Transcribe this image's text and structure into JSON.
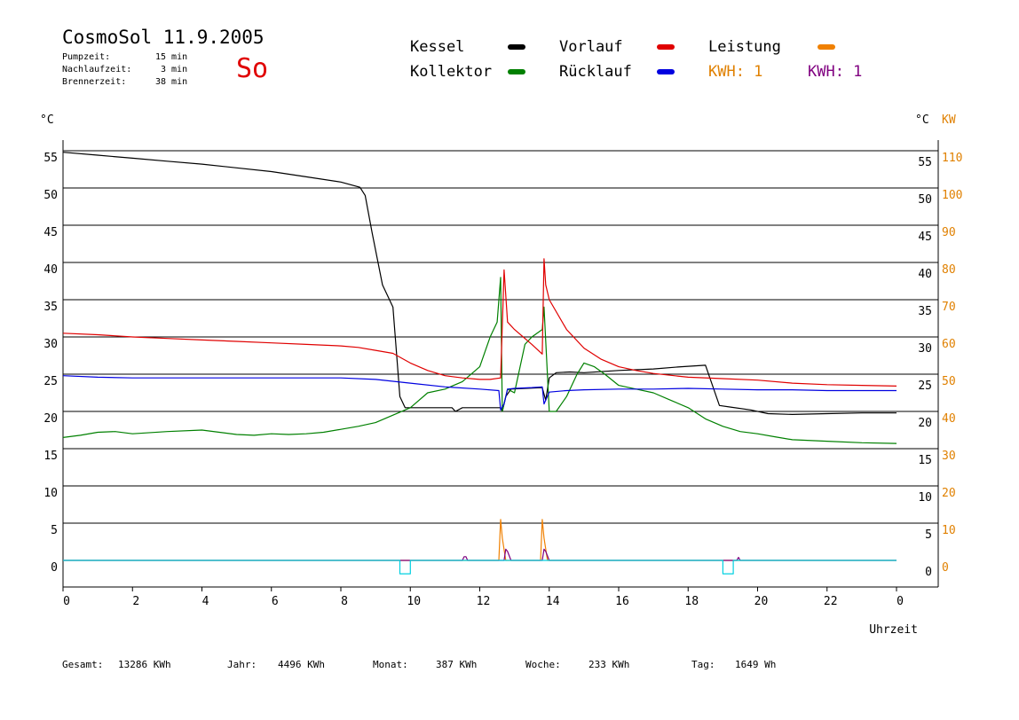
{
  "header": {
    "title": "CosmoSol 11.9.2005",
    "pump_label": "Pumpzeit:",
    "pump_value": "15 min",
    "nach_label": "Nachlaufzeit:",
    "nach_value": "3 min",
    "brenner_label": "Brennerzeit:",
    "brenner_value": "38 min",
    "day": "So"
  },
  "legend": {
    "kessel": "Kessel",
    "kollektor": "Kollektor",
    "vorlauf": "Vorlauf",
    "ruecklauf": "Rücklauf",
    "leistung": "Leistung",
    "kwh_orange": "KWH: 1",
    "kwh_purple": "KWH: 1",
    "colors": {
      "kessel": "#000000",
      "kollektor": "#008000",
      "vorlauf": "#e00000",
      "ruecklauf": "#0000e0",
      "leistung": "#f08000",
      "kwh_orange": "#e08000",
      "kwh_purple": "#800080"
    }
  },
  "units": {
    "left": "°C",
    "right_c": "°C",
    "right_kw": "KW"
  },
  "footer": {
    "gesamt_label": "Gesamt:",
    "gesamt_value": "13286 KWh",
    "jahr_label": "Jahr:",
    "jahr_value": "4496 KWh",
    "monat_label": "Monat:",
    "monat_value": "387 KWh",
    "woche_label": "Woche:",
    "woche_value": "233 KWh",
    "tag_label": "Tag:",
    "tag_value": "1649 Wh"
  },
  "chart_data": {
    "type": "line",
    "xlabel": "Uhrzeit",
    "xlim": [
      0,
      24
    ],
    "ylim": [
      -3.5,
      55
    ],
    "x_ticks": [
      "0",
      "2",
      "4",
      "6",
      "8",
      "10",
      "12",
      "14",
      "16",
      "18",
      "20",
      "22",
      "0"
    ],
    "y_ticks": [
      0,
      5,
      10,
      15,
      20,
      25,
      30,
      35,
      40,
      45,
      50,
      55
    ],
    "y_ticks_kw": [
      0,
      10,
      20,
      30,
      40,
      50,
      60,
      70,
      80,
      90,
      100,
      110
    ],
    "grid": true,
    "series": [
      {
        "name": "Kessel",
        "color": "#000000",
        "x": [
          0,
          1,
          2,
          3,
          4,
          5,
          6,
          7,
          8,
          8.55,
          8.7,
          8.9,
          9.2,
          9.5,
          9.7,
          9.85,
          10.5,
          11.2,
          11.3,
          11.5,
          12.6,
          12.65,
          12.75,
          12.9,
          13.8,
          13.9,
          14.0,
          14.2,
          14.6,
          15.0,
          16.0,
          17.0,
          17.8,
          18.5,
          18.9,
          19.2,
          19.8,
          20.3,
          21,
          22,
          23,
          24
        ],
        "y": [
          54.8,
          54.4,
          54,
          53.6,
          53.2,
          52.7,
          52.2,
          51.5,
          50.8,
          50.1,
          49,
          44,
          37,
          34,
          22,
          20.5,
          20.5,
          20.5,
          20,
          20.5,
          20.5,
          20,
          22,
          23,
          23.2,
          21.5,
          24.5,
          25.2,
          25.3,
          25.2,
          25.5,
          25.7,
          26,
          26.2,
          20.8,
          20.6,
          20.2,
          19.7,
          19.6,
          19.7,
          19.8,
          19.8
        ]
      },
      {
        "name": "Kollektor",
        "color": "#008000",
        "x": [
          0,
          0.5,
          1,
          1.5,
          2,
          3,
          4,
          4.5,
          5,
          5.5,
          6,
          6.5,
          7,
          7.5,
          8,
          8.5,
          9,
          9.5,
          10,
          10.5,
          11,
          11.5,
          12,
          12.3,
          12.5,
          12.6,
          12.65,
          12.8,
          13,
          13.3,
          13.5,
          13.8,
          13.85,
          14.0,
          14.2,
          14.5,
          14.8,
          15.0,
          15.3,
          15.6,
          16,
          16.5,
          17,
          17.5,
          18,
          18.5,
          19,
          19.5,
          20,
          20.5,
          21,
          22,
          23,
          24
        ],
        "y": [
          16.5,
          16.8,
          17.2,
          17.3,
          17.0,
          17.3,
          17.5,
          17.2,
          16.9,
          16.8,
          17.0,
          16.9,
          17.0,
          17.2,
          17.6,
          18.0,
          18.5,
          19.5,
          20.5,
          22.5,
          23,
          24,
          26,
          30,
          32,
          38,
          20,
          23,
          22.5,
          29,
          30,
          31,
          34,
          20,
          20,
          22,
          25,
          26.5,
          26,
          25,
          23.5,
          23,
          22.5,
          21.5,
          20.5,
          19,
          18,
          17.3,
          17,
          16.6,
          16.2,
          16.0,
          15.8,
          15.7
        ]
      },
      {
        "name": "Vorlauf",
        "color": "#e00000",
        "x": [
          0,
          1,
          2,
          3,
          4,
          5,
          6,
          7,
          8,
          8.5,
          9,
          9.5,
          10,
          10.5,
          11,
          11.5,
          12,
          12.3,
          12.6,
          12.7,
          12.8,
          13.0,
          13.5,
          13.8,
          13.85,
          13.9,
          14.0,
          14.5,
          15,
          15.5,
          16,
          16.5,
          17,
          18,
          19,
          20,
          21,
          22,
          23,
          24
        ],
        "y": [
          30.5,
          30.3,
          30.0,
          29.8,
          29.6,
          29.4,
          29.2,
          29.0,
          28.8,
          28.6,
          28.2,
          27.8,
          26.5,
          25.5,
          24.8,
          24.5,
          24.3,
          24.3,
          24.5,
          39,
          32,
          31,
          29,
          27.7,
          40.5,
          37,
          35,
          31,
          28.5,
          27,
          26,
          25.5,
          25.1,
          24.6,
          24.4,
          24.2,
          23.8,
          23.6,
          23.5,
          23.4
        ]
      },
      {
        "name": "Rücklauf",
        "color": "#0000e0",
        "x": [
          0,
          1,
          2,
          3,
          4,
          5,
          6,
          7,
          8,
          9,
          10,
          11,
          12,
          12.55,
          12.6,
          12.7,
          12.8,
          13.0,
          13.5,
          13.8,
          13.85,
          14.0,
          14.5,
          15,
          16,
          17,
          18,
          19,
          20,
          21,
          22,
          23,
          24
        ],
        "y": [
          24.8,
          24.6,
          24.5,
          24.5,
          24.5,
          24.5,
          24.5,
          24.5,
          24.5,
          24.3,
          23.8,
          23.3,
          23.0,
          22.8,
          20.2,
          21,
          23,
          23.1,
          23.2,
          23.3,
          21,
          22.6,
          22.8,
          22.9,
          23,
          23,
          23.1,
          23,
          22.9,
          22.9,
          22.8,
          22.8,
          22.8
        ]
      },
      {
        "name": "Leistung",
        "color": "#f08000",
        "x": [
          0,
          12.4,
          12.55,
          12.6,
          12.65,
          12.75,
          12.85,
          13.6,
          13.75,
          13.8,
          13.85,
          13.95,
          14.05,
          24
        ],
        "y": [
          0,
          0,
          0,
          5.5,
          3,
          0,
          0,
          0,
          0,
          5.5,
          3,
          0,
          0,
          0
        ]
      },
      {
        "name": "KWH",
        "color": "#800080",
        "x": [
          0,
          11.5,
          11.55,
          11.6,
          11.65,
          12.7,
          12.75,
          12.8,
          12.9,
          13.8,
          13.85,
          13.9,
          14.0,
          19.4,
          19.45,
          19.5,
          24
        ],
        "y": [
          0,
          0,
          0.5,
          0.5,
          0,
          0,
          1.5,
          1.2,
          0,
          0,
          1.5,
          1.2,
          0,
          0,
          0.4,
          0,
          0
        ]
      },
      {
        "name": "Pumpe",
        "color": "#00d0e0",
        "x": [
          0,
          9.7,
          9.7,
          10.0,
          10.0,
          19.0,
          19.0,
          19.3,
          19.3,
          24
        ],
        "y": [
          0,
          0,
          -1.8,
          -1.8,
          0,
          0,
          -1.8,
          -1.8,
          0,
          0
        ]
      }
    ]
  }
}
